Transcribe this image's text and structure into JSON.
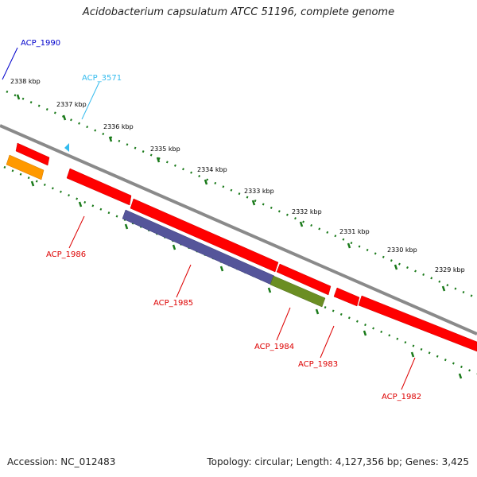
{
  "title": "Acidobacterium capsulatum ATCC 51196, complete genome",
  "accession": "Accession: NC_012483",
  "topology": "Topology: circular; Length: 4,127,356 bp; Genes: 3,425",
  "scale": {
    "labels": [
      "2338 kbp",
      "2337 kbp",
      "2336 kbp",
      "2335 kbp",
      "2334 kbp",
      "2333 kbp",
      "2332 kbp",
      "2331 kbp",
      "2330 kbp",
      "2329 kbp"
    ]
  },
  "genes": [
    {
      "id": "ACP_1990",
      "color": "#0000cc"
    },
    {
      "id": "ACP_3571",
      "color": "#33bbee"
    },
    {
      "id": "ACP_1986",
      "color": "#dd0000"
    },
    {
      "id": "ACP_1985",
      "color": "#dd0000"
    },
    {
      "id": "ACP_1984",
      "color": "#dd0000"
    },
    {
      "id": "ACP_1983",
      "color": "#dd0000"
    },
    {
      "id": "ACP_1982",
      "color": "#dd0000"
    }
  ],
  "colors": {
    "backbone": "#8a8a8a",
    "cds": "#ff0000",
    "orange_feature": "#ff9900",
    "purple_feature": "#55559a",
    "olive_feature": "#6b8e23",
    "ticks": "#1a7a1a"
  }
}
